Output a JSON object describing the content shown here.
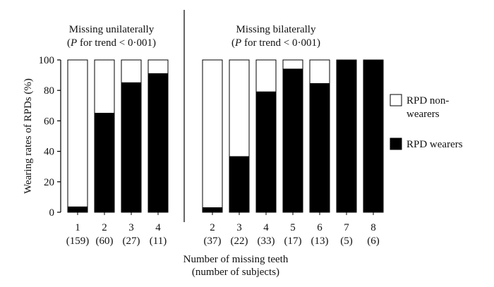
{
  "chart_data": {
    "type": "bar",
    "stacked": true,
    "ylabel": "Wearing rates of RPDs (%)",
    "xlabel_line1": "Number of missing teeth",
    "xlabel_line2": "(number of subjects)",
    "ylim": [
      0,
      100
    ],
    "yticks": [
      "0",
      "20",
      "40",
      "60",
      "80",
      "100"
    ],
    "legend": {
      "placement": "right",
      "entries": [
        {
          "name": "RPD non-",
          "name_line2": "wearers",
          "color": "#ffffff"
        },
        {
          "name": "RPD wearers",
          "name_line2": "",
          "color": "#000000"
        }
      ]
    },
    "panels": [
      {
        "title": "Missing unilaterally",
        "subtitle_p": "P",
        "subtitle_rest": " for trend < 0·001)",
        "subtitle_open": "(",
        "categories": [
          "1",
          "2",
          "3",
          "4"
        ],
        "n_labels": [
          "(159)",
          "(60)",
          "(27)",
          "(11)"
        ],
        "wearers": [
          3.5,
          65,
          85,
          91
        ],
        "non_wearers": [
          96.5,
          35,
          15,
          9
        ]
      },
      {
        "title": "Missing bilaterally",
        "subtitle_p": "P",
        "subtitle_rest": " for trend < 0·001)",
        "subtitle_open": "(",
        "categories": [
          "2",
          "3",
          "4",
          "5",
          "6",
          "7",
          "8"
        ],
        "n_labels": [
          "(37)",
          "(22)",
          "(33)",
          "(17)",
          "(13)",
          "(5)",
          "(6)"
        ],
        "wearers": [
          3,
          36.5,
          79,
          94,
          84.5,
          100,
          100
        ],
        "non_wearers": [
          97,
          63.5,
          21,
          6,
          15.5,
          0,
          0
        ]
      }
    ]
  }
}
